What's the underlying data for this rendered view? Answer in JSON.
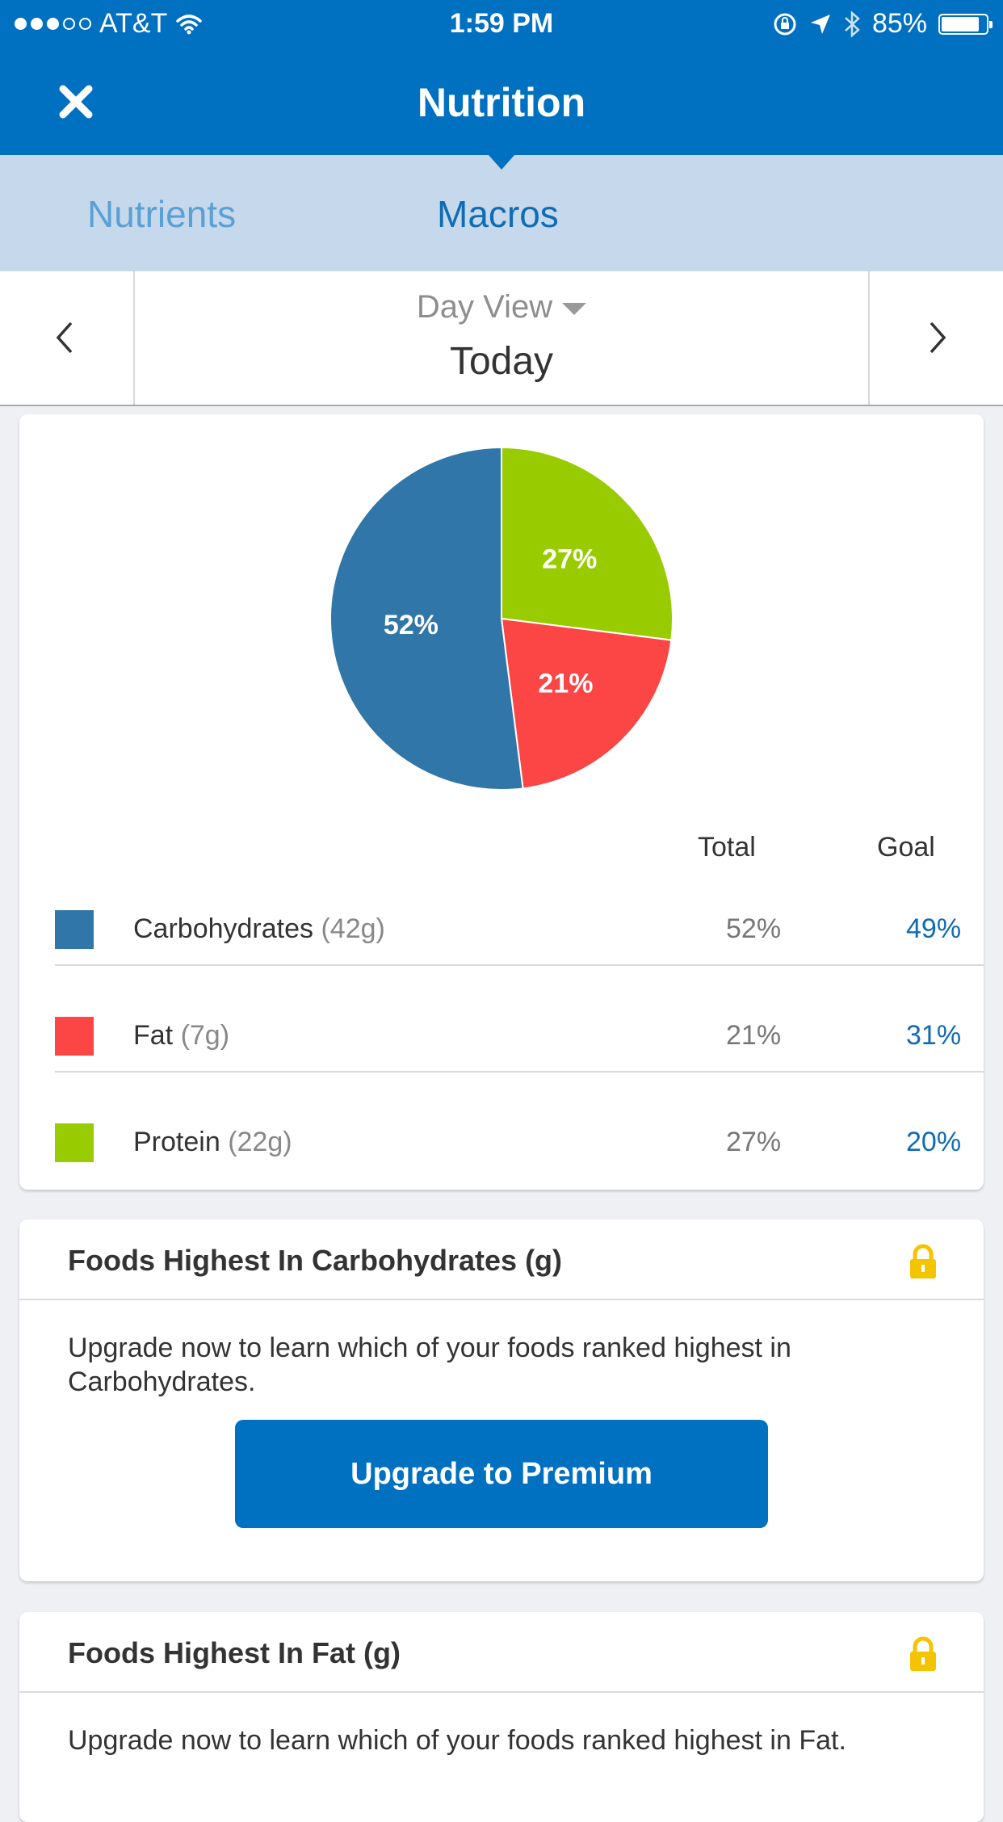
{
  "status_bar": {
    "carrier": "AT&T",
    "time": "1:59 PM",
    "battery_text": "85%",
    "battery_level": 0.85,
    "signal_bars": 3,
    "icons": [
      "wifi-icon",
      "rotation-lock-icon",
      "location-icon",
      "bluetooth-icon",
      "battery-icon"
    ]
  },
  "nav": {
    "title": "Nutrition",
    "close_icon": "close-icon",
    "background": "#0070c0"
  },
  "tabs": {
    "items": [
      {
        "label": "Nutrients",
        "active": false
      },
      {
        "label": "Macros",
        "active": true
      }
    ],
    "background": "#c6d9ec"
  },
  "day_selector": {
    "view_label": "Day View",
    "date_label": "Today",
    "prev_icon": "chevron-left-icon",
    "next_icon": "chevron-right-icon"
  },
  "chart_data": {
    "type": "pie",
    "slices": [
      {
        "name": "Carbohydrates",
        "value": 52,
        "label": "52%",
        "color": "#3176a8"
      },
      {
        "name": "Fat",
        "value": 21,
        "label": "21%",
        "color": "#fc4545"
      },
      {
        "name": "Protein",
        "value": 27,
        "label": "27%",
        "color": "#99cc00"
      }
    ]
  },
  "macros_table": {
    "headers": {
      "total": "Total",
      "goal": "Goal"
    },
    "rows": [
      {
        "name": "Carbohydrates",
        "grams": "(42g)",
        "total": "52%",
        "goal": "49%",
        "color": "#3176a8"
      },
      {
        "name": "Fat",
        "grams": "(7g)",
        "total": "21%",
        "goal": "31%",
        "color": "#fc4545"
      },
      {
        "name": "Protein",
        "grams": "(22g)",
        "total": "27%",
        "goal": "20%",
        "color": "#99cc00"
      }
    ]
  },
  "food_cards": [
    {
      "title": "Foods Highest In Carbohydrates (g)",
      "description": "Upgrade now to learn which of your foods ranked highest in Carbohydrates.",
      "button_label": "Upgrade to Premium",
      "lock_icon": "lock-icon"
    },
    {
      "title": "Foods Highest In Fat (g)",
      "description": "Upgrade now to learn which of your foods ranked highest in Fat.",
      "lock_icon": "lock-icon"
    }
  ],
  "colors": {
    "accent": "#0070c0",
    "goal_text": "#0f6cb4",
    "lock": "#f5c400"
  }
}
